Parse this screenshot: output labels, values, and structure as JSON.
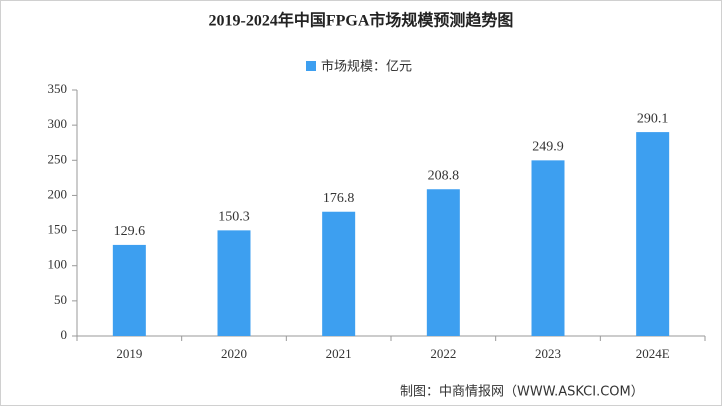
{
  "chart_data": {
    "type": "bar",
    "title": "2019-2024年中国FPGA市场规模预测趋势图",
    "legend_label": "市场规模：亿元",
    "legend_position": "top",
    "categories": [
      "2019",
      "2020",
      "2021",
      "2022",
      "2023",
      "2024E"
    ],
    "values": [
      129.6,
      150.3,
      176.8,
      208.8,
      249.9,
      290.1
    ],
    "color": "#3d9ff0",
    "ylim": [
      0,
      350
    ],
    "yticks": [
      0,
      50,
      100,
      150,
      200,
      250,
      300,
      350
    ],
    "grid": false,
    "data_labels": true,
    "source": "制图：中商情报网（WWW.ASKCI.COM）"
  }
}
